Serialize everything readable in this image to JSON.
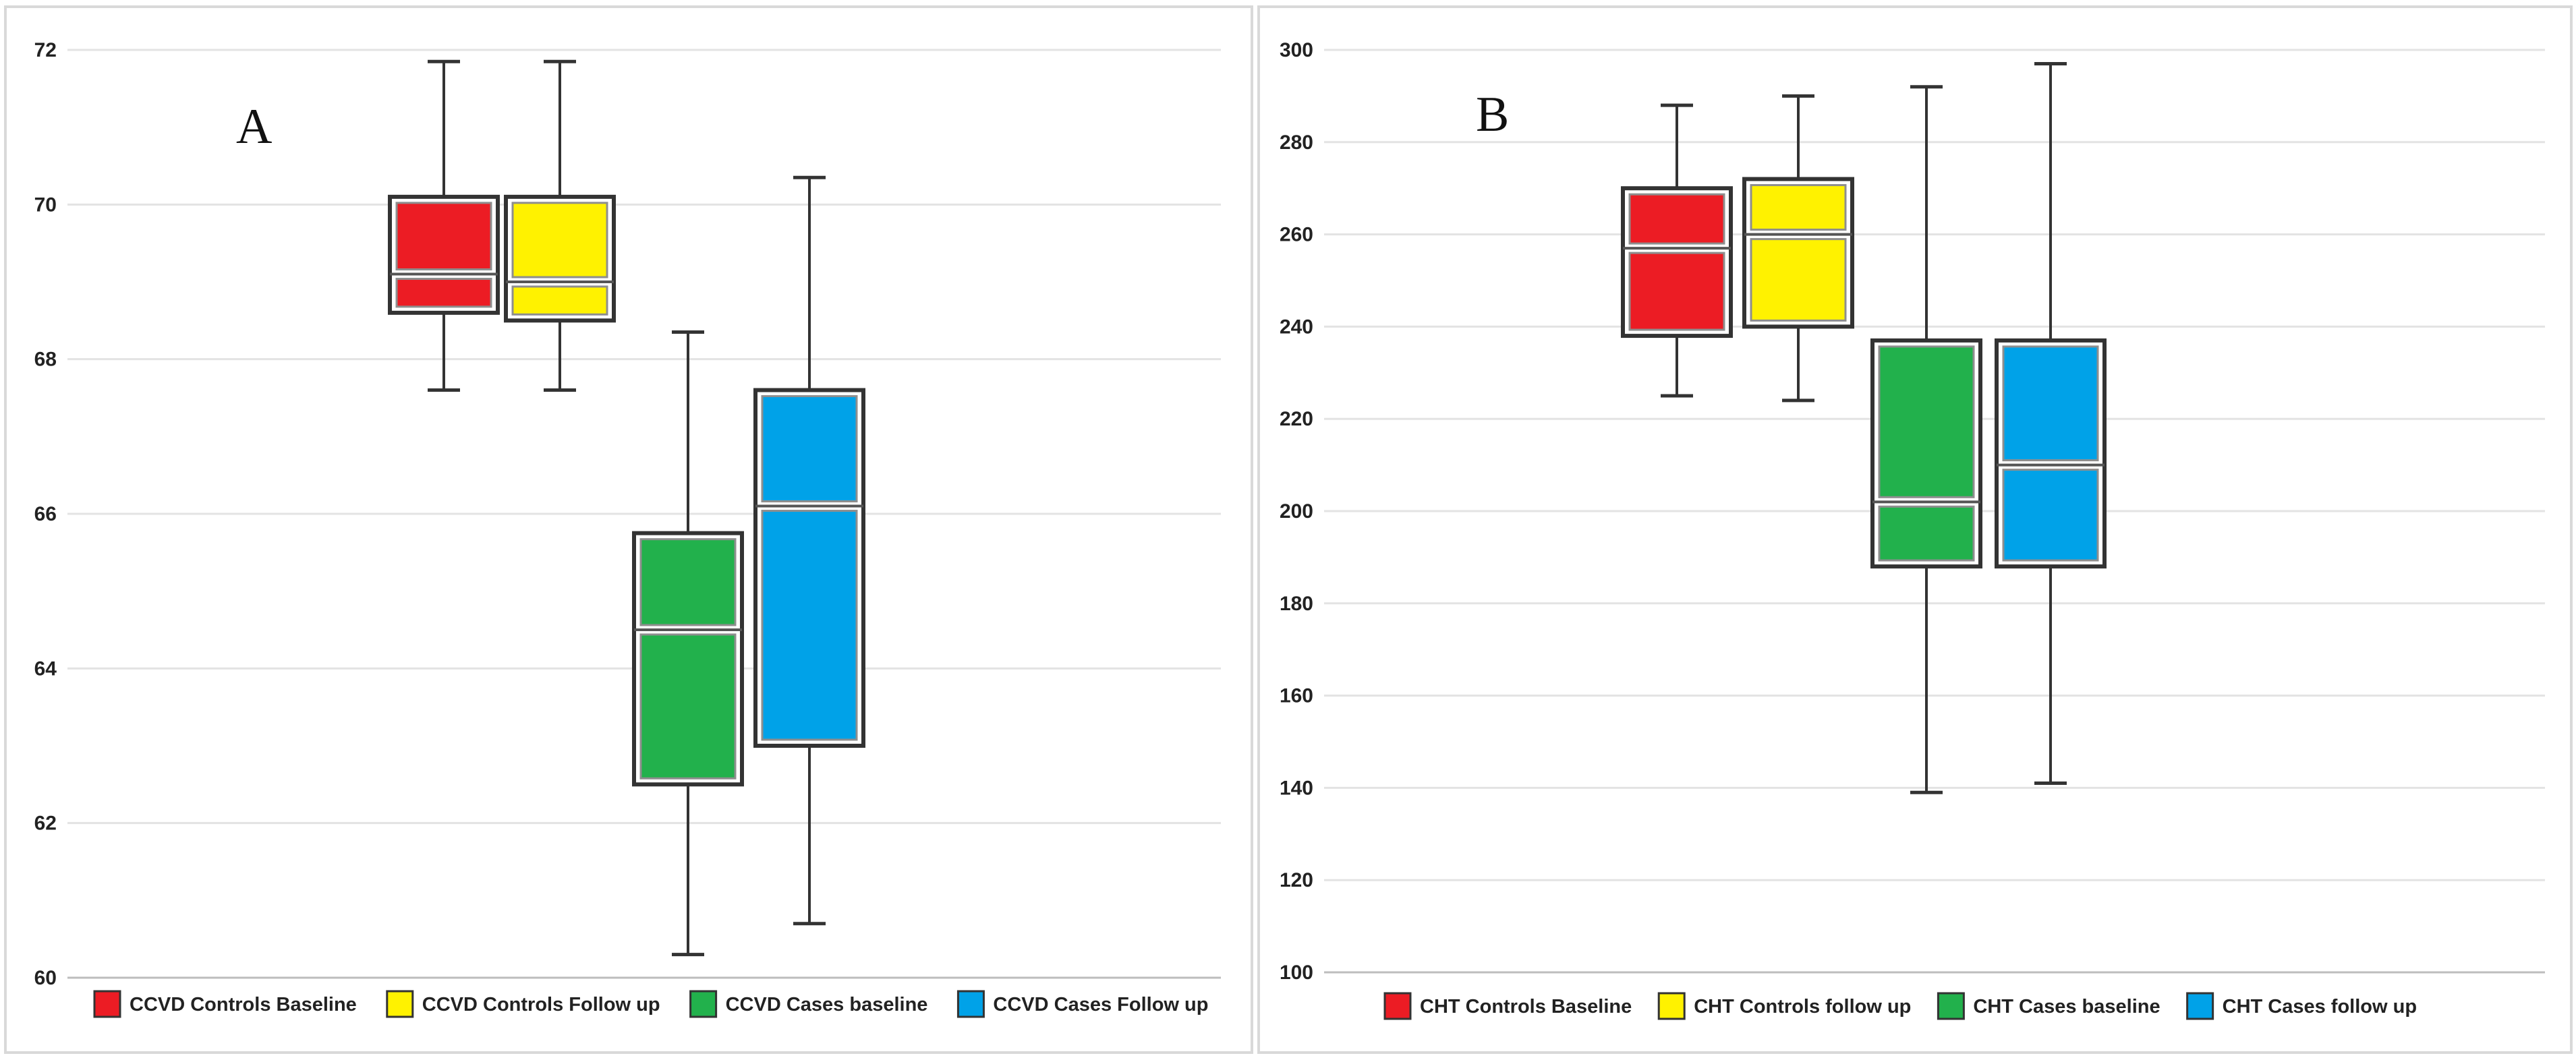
{
  "chart_data": [
    {
      "type": "boxplot",
      "panel_label": "A",
      "ylim": [
        60,
        72
      ],
      "yticks": [
        60,
        62,
        64,
        66,
        68,
        70,
        72
      ],
      "grid": true,
      "legend_position": "bottom",
      "series": [
        {
          "name": "CCVD Controls Baseline",
          "color": "#ec1c24",
          "min": 67.6,
          "q1": 68.6,
          "median": 69.1,
          "q3": 70.1,
          "max": 71.85
        },
        {
          "name": "CCVD Controls Follow up",
          "color": "#fff200",
          "min": 67.6,
          "q1": 68.5,
          "median": 69.0,
          "q3": 70.1,
          "max": 71.85
        },
        {
          "name": "CCVD Cases baseline",
          "color": "#22b14c",
          "min": 60.3,
          "q1": 62.5,
          "median": 64.5,
          "q3": 65.75,
          "max": 68.35
        },
        {
          "name": "CCVD Cases Follow up",
          "color": "#00a2e8",
          "min": 60.7,
          "q1": 63.0,
          "median": 66.1,
          "q3": 67.6,
          "max": 70.35
        }
      ]
    },
    {
      "type": "boxplot",
      "panel_label": "B",
      "ylim": [
        100,
        300
      ],
      "yticks": [
        100,
        120,
        140,
        160,
        180,
        200,
        220,
        240,
        260,
        280,
        300
      ],
      "grid": true,
      "legend_position": "bottom",
      "series": [
        {
          "name": "CHT Controls Baseline",
          "color": "#ec1c24",
          "min": 225,
          "q1": 238,
          "median": 257,
          "q3": 270,
          "max": 288
        },
        {
          "name": "CHT Controls follow up",
          "color": "#fff200",
          "min": 224,
          "q1": 240,
          "median": 260,
          "q3": 272,
          "max": 290
        },
        {
          "name": "CHT Cases baseline",
          "color": "#22b14c",
          "min": 139,
          "q1": 188,
          "median": 202,
          "q3": 237,
          "max": 292
        },
        {
          "name": "CHT Cases follow up",
          "color": "#00a2e8",
          "min": 141,
          "q1": 188,
          "median": 210,
          "q3": 237,
          "max": 297
        }
      ]
    }
  ]
}
